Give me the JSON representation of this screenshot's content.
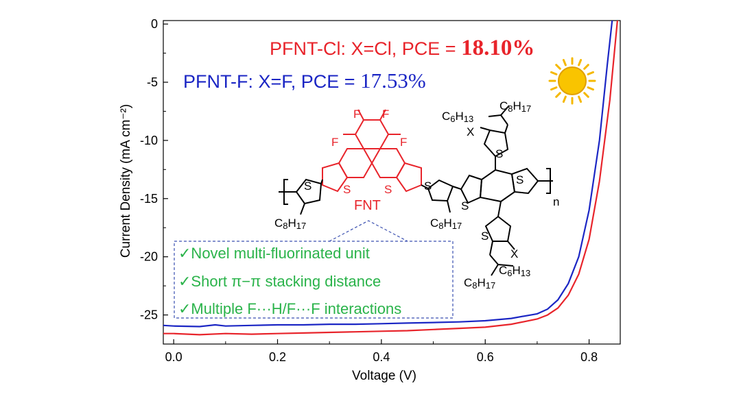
{
  "chart_data": {
    "type": "line",
    "xlabel": "Voltage (V)",
    "ylabel": "Current Density (mA cm⁻²)",
    "xlim": [
      -0.02,
      0.86
    ],
    "ylim": [
      -27.5,
      0.3
    ],
    "xticks": [
      0.0,
      0.2,
      0.4,
      0.6,
      0.8
    ],
    "xtick_labels": [
      "0.0",
      "0.2",
      "0.4",
      "0.6",
      "0.8"
    ],
    "yticks": [
      0,
      -5,
      -10,
      -15,
      -20,
      -25
    ],
    "ytick_labels": [
      "0",
      "-5",
      "-10",
      "-15",
      "-20",
      "-25"
    ],
    "grid": false,
    "series": [
      {
        "name": "PFNT-Cl",
        "color": "#e8242b",
        "points": [
          [
            -0.02,
            -26.6
          ],
          [
            0.0,
            -26.6
          ],
          [
            0.05,
            -26.7
          ],
          [
            0.1,
            -26.6
          ],
          [
            0.15,
            -26.65
          ],
          [
            0.2,
            -26.6
          ],
          [
            0.25,
            -26.55
          ],
          [
            0.3,
            -26.5
          ],
          [
            0.35,
            -26.45
          ],
          [
            0.4,
            -26.4
          ],
          [
            0.45,
            -26.35
          ],
          [
            0.5,
            -26.25
          ],
          [
            0.55,
            -26.15
          ],
          [
            0.6,
            -26.05
          ],
          [
            0.65,
            -25.8
          ],
          [
            0.7,
            -25.35
          ],
          [
            0.72,
            -25.0
          ],
          [
            0.74,
            -24.4
          ],
          [
            0.76,
            -23.3
          ],
          [
            0.78,
            -21.5
          ],
          [
            0.8,
            -18.5
          ],
          [
            0.82,
            -13.5
          ],
          [
            0.84,
            -6.5
          ],
          [
            0.855,
            0.5
          ]
        ]
      },
      {
        "name": "PFNT-F",
        "color": "#1b26c4",
        "points": [
          [
            -0.02,
            -25.9
          ],
          [
            0.0,
            -25.95
          ],
          [
            0.05,
            -26.0
          ],
          [
            0.08,
            -25.85
          ],
          [
            0.1,
            -25.95
          ],
          [
            0.15,
            -25.9
          ],
          [
            0.2,
            -25.85
          ],
          [
            0.25,
            -25.85
          ],
          [
            0.3,
            -25.8
          ],
          [
            0.35,
            -25.8
          ],
          [
            0.4,
            -25.75
          ],
          [
            0.45,
            -25.7
          ],
          [
            0.5,
            -25.65
          ],
          [
            0.55,
            -25.6
          ],
          [
            0.6,
            -25.5
          ],
          [
            0.65,
            -25.3
          ],
          [
            0.7,
            -24.9
          ],
          [
            0.72,
            -24.5
          ],
          [
            0.74,
            -23.7
          ],
          [
            0.76,
            -22.3
          ],
          [
            0.78,
            -20.0
          ],
          [
            0.8,
            -16.0
          ],
          [
            0.82,
            -10.0
          ],
          [
            0.835,
            -3.5
          ],
          [
            0.845,
            0.5
          ]
        ]
      }
    ],
    "annotations": {
      "pfnt_cl": {
        "text": "PFNT-Cl: X=Cl, PCE = ",
        "value": "18.10%",
        "color": "#e8242b"
      },
      "pfnt_f": {
        "text": "PFNT-F: X=F, PCE = ",
        "value": "17.53%",
        "color": "#1b26c4"
      }
    }
  },
  "callout": {
    "items": [
      "✓Novel multi-fluorinated unit",
      "✓Short π−π stacking distance",
      "✓Multiple F···H/F···F interactions"
    ]
  },
  "molecule": {
    "unit_label": "FNT",
    "fluorine": "F",
    "sulfur": "S",
    "x_sub": "X",
    "repeat_n": "n",
    "c8h17": "C8H17",
    "c6h13": "C6H13"
  },
  "colors": {
    "sun": "#f5b800",
    "callout_text": "#2ab34a",
    "callout_border": "#3a4fb0",
    "fnt_red": "#e8242b"
  }
}
